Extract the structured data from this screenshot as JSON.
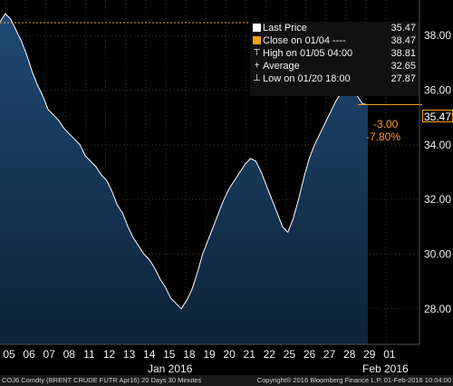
{
  "legend": {
    "items": [
      {
        "marker": "square-white",
        "label": "Last Price",
        "value": "35.47"
      },
      {
        "marker": "square-orange",
        "label": "Close on 01/04 ----",
        "value": "38.47"
      },
      {
        "marker": "high-icon",
        "label": "High on 01/05 04:00",
        "value": "38.81"
      },
      {
        "marker": "average-icon",
        "label": "Average",
        "value": "32.65"
      },
      {
        "marker": "low-icon",
        "label": "Low on 01/20 18:00",
        "value": "27.87"
      }
    ]
  },
  "annotations": {
    "change": "-3.00",
    "change_pct": "-7.80%",
    "last_tag": "35.47"
  },
  "footer": {
    "left": "COJ6 Comdty  (BRENT CRUDE FUTR  Apr16) 20 Days 30 Minutes",
    "right": "Copyright® 2016 Bloomberg Finance L.P.   01-Feb-2016 10:04:00"
  },
  "colors": {
    "background": "#000000",
    "line": "#ffffff",
    "area_top": "#1f4a73",
    "area_bottom": "#0d2238",
    "reference_line": "#f0a020",
    "annotation": "#ff9a33"
  },
  "chart_data": {
    "type": "area",
    "title": "",
    "xlabel": "",
    "ylabel": "",
    "ylim": [
      26.7,
      39.3
    ],
    "yticks": [
      "28.00",
      "30.00",
      "32.00",
      "34.00",
      "36.00",
      "38.00"
    ],
    "ytick_values": [
      28,
      30,
      32,
      34,
      36,
      38
    ],
    "xticks": [
      "05",
      "06",
      "07",
      "08",
      "11",
      "12",
      "13",
      "14",
      "15",
      "18",
      "19",
      "20",
      "21",
      "22",
      "25",
      "26",
      "27",
      "28",
      "29",
      "01"
    ],
    "x_period_labels": [
      "Jan 2016",
      "Feb 2016"
    ],
    "reference_close": 38.47,
    "series": [
      {
        "name": "Last Price",
        "values": [
          38.5,
          38.8,
          38.6,
          38.2,
          37.8,
          37.3,
          36.7,
          36.2,
          35.8,
          35.3,
          35.1,
          34.9,
          34.6,
          34.4,
          34.2,
          34.0,
          33.6,
          33.4,
          33.2,
          32.9,
          32.7,
          32.3,
          31.8,
          31.5,
          31.0,
          30.6,
          30.3,
          30.0,
          29.8,
          29.5,
          29.1,
          28.8,
          28.4,
          28.2,
          28.0,
          28.3,
          28.7,
          29.3,
          30.0,
          30.5,
          31.0,
          31.5,
          32.0,
          32.4,
          32.7,
          33.0,
          33.3,
          33.5,
          33.4,
          33.0,
          32.5,
          32.0,
          31.5,
          31.0,
          30.8,
          31.3,
          32.0,
          32.8,
          33.5,
          34.0,
          34.4,
          34.8,
          35.2,
          35.6,
          35.9,
          36.1,
          36.2,
          35.8,
          35.5,
          35.47
        ]
      }
    ]
  }
}
